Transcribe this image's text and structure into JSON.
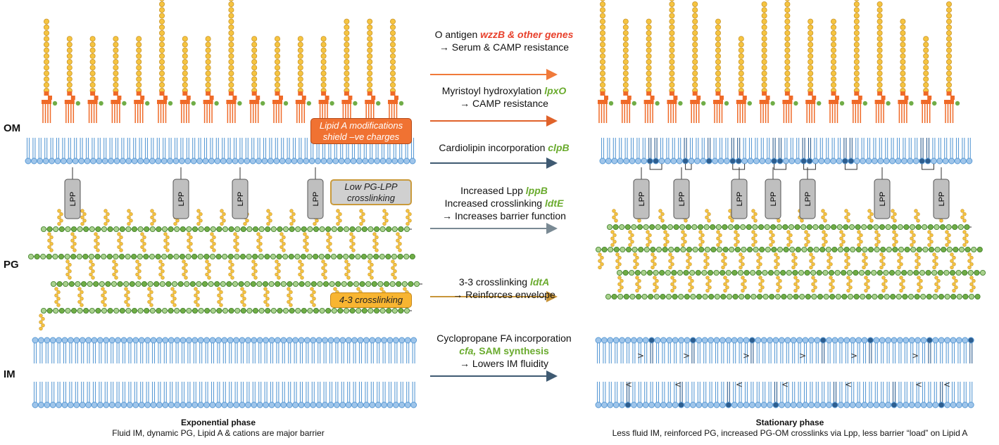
{
  "layers": {
    "om": "OM",
    "pg": "PG",
    "im": "IM"
  },
  "lpp_label": "LPP",
  "left_tags": {
    "lipid_a": [
      "Lipid A modifications",
      "shield –ve charges"
    ],
    "low_pg": [
      "Low PG-LPP",
      "crosslinking"
    ],
    "crosslink43": "4-3 crosslinking"
  },
  "annotations": [
    {
      "lines": [
        {
          "plain": "O antigen ",
          "gene": "wzzB & other genes",
          "gene_style": "red"
        },
        {
          "plain": "→ Serum & CAMP resistance"
        }
      ],
      "arrow_color": "#f07a3a"
    },
    {
      "lines": [
        {
          "plain": "Myristoyl hydroxylation ",
          "gene": "lpxO",
          "gene_style": "green"
        },
        {
          "plain": "→ CAMP resistance"
        }
      ],
      "arrow_color": "#e0622a"
    },
    {
      "lines": [
        {
          "plain": "Cardiolipin incorporation ",
          "gene": "clpB",
          "gene_style": "green"
        }
      ],
      "arrow_color": "#3f5a72"
    },
    {
      "lines": [
        {
          "plain": "Increased Lpp ",
          "gene": "lppB",
          "gene_style": "green"
        },
        {
          "plain": "Increased crosslinking ",
          "gene": "ldtE",
          "gene_style": "green"
        },
        {
          "plain": "→ Increases barrier function"
        }
      ],
      "arrow_color": "#7a8a94"
    },
    {
      "lines": [
        {
          "plain": "3-3 crosslinking ",
          "gene": "ldtA",
          "gene_style": "green"
        },
        {
          "plain": "→ Reinforces envelope"
        }
      ],
      "arrow_color": "#c8953a"
    },
    {
      "lines": [
        {
          "plain": "Cyclopropane FA incorporation"
        },
        {
          "gene": "cfa,",
          "gene_style": "green",
          "plain2": " SAM synthesis"
        },
        {
          "plain": "→ Lowers IM fluidity"
        }
      ],
      "arrow_color": "#3f5a72"
    }
  ],
  "captions": {
    "left_title": "Exponential phase",
    "left_text": "Fluid IM, dynamic PG, Lipid A & cations are major barrier",
    "right_title": "Stationary phase",
    "right_text": "Less fluid IM, reinforced PG, increased PG-OM crosslinks via Lpp, less barrier “load” on Lipid A"
  },
  "colors": {
    "yellow": "#f6c440",
    "yellow_stroke": "#c8952a",
    "orange": "#ef6a28",
    "blue": "#5b9bd5",
    "blue_dark": "#2e5e8f",
    "green": "#70ad47",
    "green_dark": "#3a7d23",
    "lpp_fill": "#bfbfbf",
    "lipid_tag": "#f07232",
    "low_pg_tag": "#d0d0d0",
    "crosslink_tag": "#f8b531"
  }
}
